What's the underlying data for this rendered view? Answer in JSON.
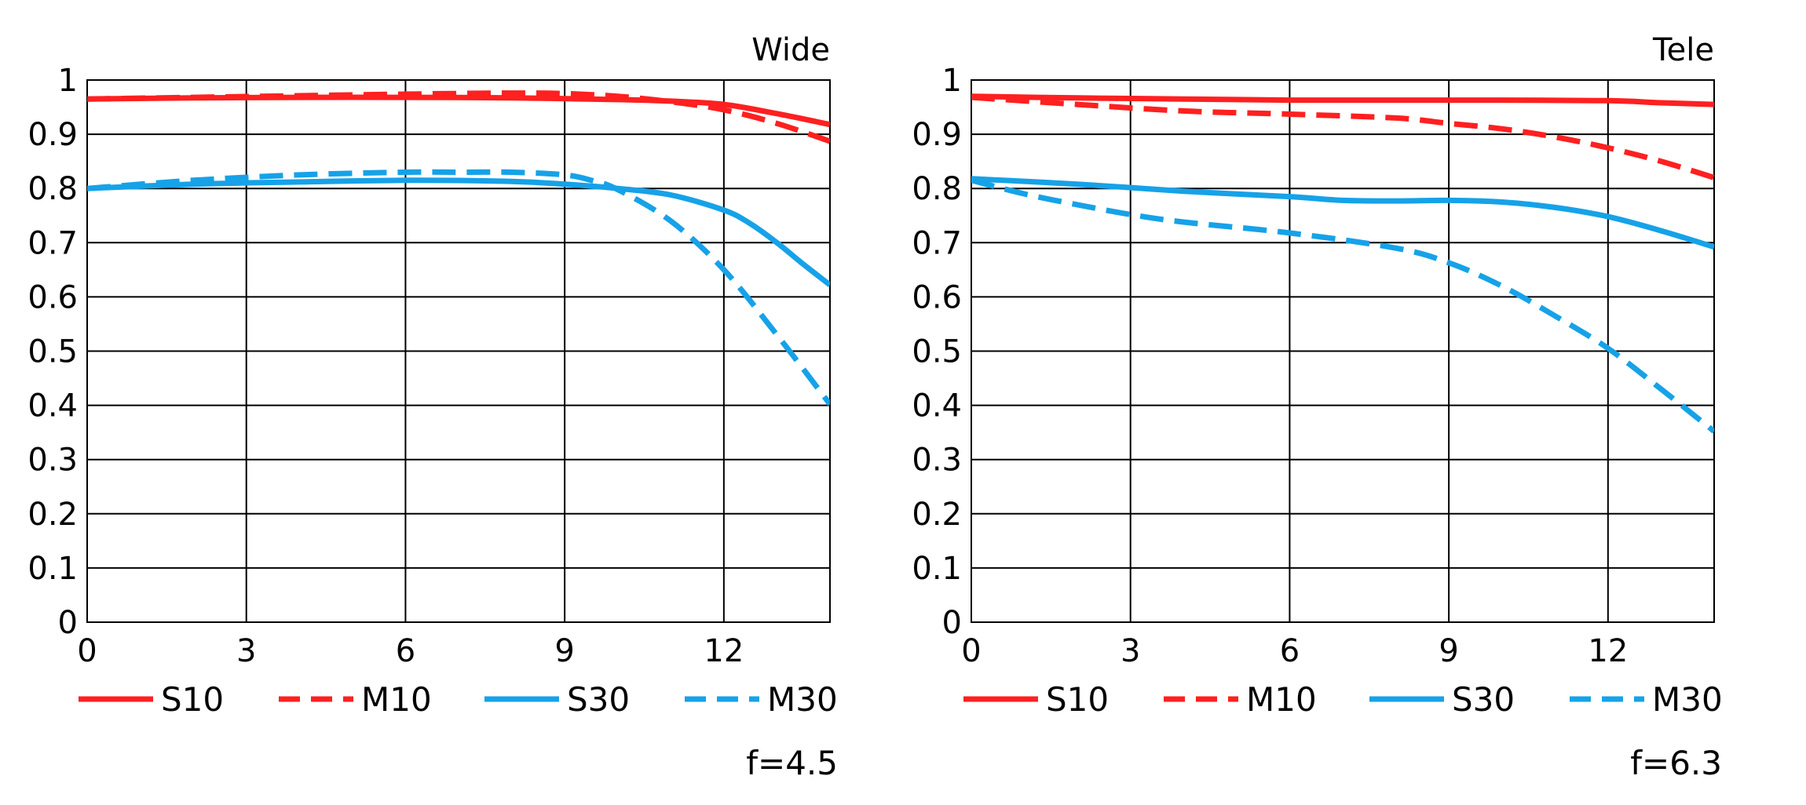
{
  "chart_data": [
    {
      "type": "line",
      "title": "Wide",
      "aperture": "f=4.5",
      "xlabel": "",
      "ylabel": "",
      "xlim": [
        0,
        14
      ],
      "ylim": [
        0,
        1
      ],
      "xticks": [
        0,
        3,
        6,
        9,
        12
      ],
      "xtick_labels": [
        "0",
        "3",
        "6",
        "9",
        "12"
      ],
      "yticks": [
        0,
        0.1,
        0.2,
        0.3,
        0.4,
        0.5,
        0.6,
        0.7,
        0.8,
        0.9,
        1
      ],
      "ytick_labels": [
        "0",
        "0.1",
        "0.2",
        "0.3",
        "0.4",
        "0.5",
        "0.6",
        "0.7",
        "0.8",
        "0.9",
        "1"
      ],
      "grid": true,
      "series": [
        {
          "name": "S10",
          "color": "#ff2020",
          "dashed": false,
          "x": [
            0,
            2,
            4,
            6,
            8,
            10,
            11,
            12,
            13,
            14
          ],
          "y": [
            0.965,
            0.967,
            0.968,
            0.968,
            0.967,
            0.964,
            0.961,
            0.955,
            0.938,
            0.918
          ]
        },
        {
          "name": "M10",
          "color": "#ff2020",
          "dashed": true,
          "x": [
            0,
            2,
            4,
            6,
            8,
            9,
            10,
            11,
            12,
            13,
            14
          ],
          "y": [
            0.965,
            0.968,
            0.971,
            0.974,
            0.976,
            0.975,
            0.97,
            0.96,
            0.945,
            0.92,
            0.887
          ]
        },
        {
          "name": "S30",
          "color": "#16a2e8",
          "dashed": false,
          "x": [
            0,
            2,
            4,
            6,
            8,
            9,
            10,
            11,
            12,
            12.5,
            13,
            13.5,
            14
          ],
          "y": [
            0.8,
            0.808,
            0.812,
            0.815,
            0.813,
            0.808,
            0.8,
            0.788,
            0.76,
            0.735,
            0.7,
            0.66,
            0.622
          ]
        },
        {
          "name": "M30",
          "color": "#16a2e8",
          "dashed": true,
          "x": [
            0,
            2,
            4,
            6,
            7,
            8,
            9,
            9.5,
            10,
            11,
            12,
            13,
            14
          ],
          "y": [
            0.8,
            0.815,
            0.825,
            0.83,
            0.83,
            0.83,
            0.825,
            0.815,
            0.798,
            0.74,
            0.65,
            0.53,
            0.402
          ]
        }
      ],
      "legend": [
        "S10",
        "M10",
        "S30",
        "M30"
      ]
    },
    {
      "type": "line",
      "title": "Tele",
      "aperture": "f=6.3",
      "xlabel": "",
      "ylabel": "",
      "xlim": [
        0,
        14
      ],
      "ylim": [
        0,
        1
      ],
      "xticks": [
        0,
        3,
        6,
        9,
        12
      ],
      "xtick_labels": [
        "0",
        "3",
        "6",
        "9",
        "12"
      ],
      "yticks": [
        0,
        0.1,
        0.2,
        0.3,
        0.4,
        0.5,
        0.6,
        0.7,
        0.8,
        0.9,
        1
      ],
      "ytick_labels": [
        "0",
        "0.1",
        "0.2",
        "0.3",
        "0.4",
        "0.5",
        "0.6",
        "0.7",
        "0.8",
        "0.9",
        "1"
      ],
      "grid": true,
      "series": [
        {
          "name": "S10",
          "color": "#ff2020",
          "dashed": false,
          "x": [
            0,
            2,
            4,
            6,
            8,
            10,
            12,
            13,
            14
          ],
          "y": [
            0.97,
            0.967,
            0.965,
            0.963,
            0.963,
            0.963,
            0.962,
            0.958,
            0.955
          ]
        },
        {
          "name": "M10",
          "color": "#ff2020",
          "dashed": true,
          "x": [
            0,
            2,
            4,
            6,
            8,
            9,
            10,
            11,
            12,
            13,
            14
          ],
          "y": [
            0.968,
            0.955,
            0.943,
            0.937,
            0.93,
            0.92,
            0.91,
            0.895,
            0.875,
            0.85,
            0.82
          ]
        },
        {
          "name": "S30",
          "color": "#16a2e8",
          "dashed": false,
          "x": [
            0,
            2,
            4,
            6,
            7,
            8,
            9,
            10,
            11,
            12,
            13,
            14
          ],
          "y": [
            0.818,
            0.808,
            0.795,
            0.785,
            0.778,
            0.777,
            0.778,
            0.775,
            0.765,
            0.748,
            0.722,
            0.692
          ]
        },
        {
          "name": "M30",
          "color": "#16a2e8",
          "dashed": true,
          "x": [
            0,
            1,
            2,
            3,
            4,
            6,
            8,
            9,
            10,
            11,
            12,
            13,
            14
          ],
          "y": [
            0.815,
            0.79,
            0.77,
            0.752,
            0.738,
            0.718,
            0.69,
            0.663,
            0.62,
            0.565,
            0.505,
            0.43,
            0.352
          ]
        }
      ],
      "legend": [
        "S10",
        "M10",
        "S30",
        "M30"
      ]
    }
  ]
}
